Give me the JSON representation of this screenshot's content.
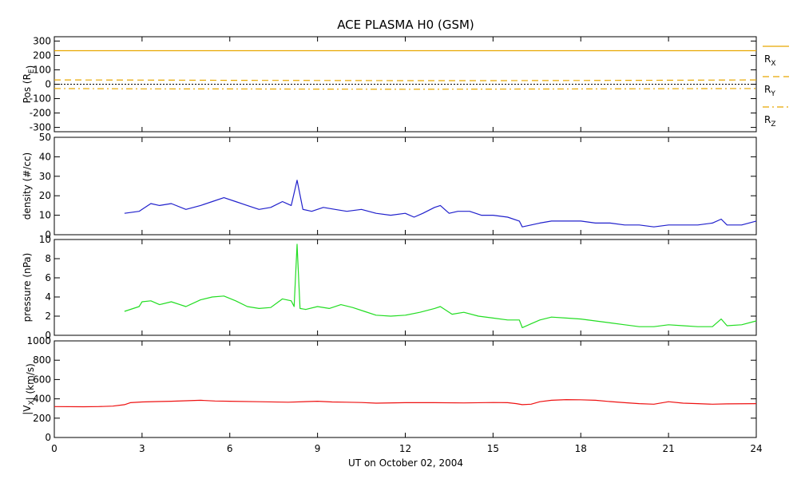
{
  "title": "ACE PLASMA H0 (GSM)",
  "xlabel": "UT on October 02, 2004",
  "chart_data": [
    {
      "type": "line",
      "ylabel": "Pos (R_E)",
      "ylabel_main": "Pos (R",
      "ylabel_sub": "E",
      "ylabel_tail": ")",
      "xlim": [
        0,
        24
      ],
      "ylim": [
        -330,
        330
      ],
      "yticks": [
        300,
        200,
        100,
        0,
        -100,
        -200,
        -300
      ],
      "xticks": [
        0,
        3,
        6,
        9,
        12,
        15,
        18,
        21,
        24
      ],
      "zero_line": true,
      "series": [
        {
          "name": "R_X",
          "label_main": "R",
          "label_sub": "X",
          "style": "solid",
          "color": "#e8a800",
          "x": [
            0,
            6,
            12,
            18,
            24
          ],
          "y": [
            233,
            233,
            233,
            233,
            233
          ]
        },
        {
          "name": "R_Y",
          "label_main": "R",
          "label_sub": "Y",
          "style": "dashed",
          "color": "#e8a800",
          "x": [
            0,
            3,
            6,
            9,
            12,
            15,
            18,
            21,
            24
          ],
          "y": [
            30,
            29,
            27,
            26,
            25,
            25,
            26,
            28,
            30
          ]
        },
        {
          "name": "R_Z",
          "label_main": "R",
          "label_sub": "Z",
          "style": "dashdot",
          "color": "#e8a800",
          "x": [
            0,
            3,
            6,
            9,
            12,
            15,
            18,
            21,
            24
          ],
          "y": [
            -30,
            -32,
            -33,
            -34,
            -35,
            -34,
            -33,
            -31,
            -30
          ]
        }
      ]
    },
    {
      "type": "line",
      "ylabel": "density (#/cc)",
      "xlim": [
        0,
        24
      ],
      "ylim": [
        0,
        50
      ],
      "yticks": [
        50,
        40,
        30,
        20,
        10,
        0
      ],
      "xticks": [
        0,
        3,
        6,
        9,
        12,
        15,
        18,
        21,
        24
      ],
      "series": [
        {
          "name": "density",
          "color": "#2020cc",
          "x": [
            2.4,
            2.9,
            3.0,
            3.3,
            3.6,
            4.0,
            4.5,
            5.0,
            5.4,
            5.8,
            6.2,
            6.6,
            7.0,
            7.4,
            7.8,
            8.1,
            8.3,
            8.5,
            8.8,
            9.2,
            9.6,
            10.0,
            10.5,
            11.0,
            11.5,
            12.0,
            12.3,
            12.6,
            13.0,
            13.2,
            13.5,
            13.8,
            14.2,
            14.6,
            15.0,
            15.5,
            15.9,
            16.0,
            16.3,
            16.6,
            17.0,
            17.5,
            18.0,
            18.5,
            19.0,
            19.5,
            20.0,
            20.5,
            21.0,
            21.5,
            22.0,
            22.5,
            22.8,
            23.0,
            23.5,
            24.0
          ],
          "y": [
            11,
            12,
            13,
            16,
            15,
            16,
            13,
            15,
            17,
            19,
            17,
            15,
            13,
            14,
            17,
            15,
            28,
            13,
            12,
            14,
            13,
            12,
            13,
            11,
            10,
            11,
            9,
            11,
            14,
            15,
            11,
            12,
            12,
            10,
            10,
            9,
            7,
            4,
            5,
            6,
            7,
            7,
            7,
            6,
            6,
            5,
            5,
            4,
            5,
            5,
            5,
            6,
            8,
            5,
            5,
            7
          ]
        }
      ]
    },
    {
      "type": "line",
      "ylabel": "pressure (nPa)",
      "xlim": [
        0,
        24
      ],
      "ylim": [
        0,
        10
      ],
      "yticks": [
        10,
        8,
        6,
        4,
        2,
        0
      ],
      "xticks": [
        0,
        3,
        6,
        9,
        12,
        15,
        18,
        21,
        24
      ],
      "series": [
        {
          "name": "pressure",
          "color": "#22dd22",
          "x": [
            2.4,
            2.9,
            3.0,
            3.3,
            3.6,
            4.0,
            4.5,
            5.0,
            5.4,
            5.8,
            6.2,
            6.6,
            7.0,
            7.4,
            7.8,
            8.1,
            8.2,
            8.3,
            8.4,
            8.6,
            9.0,
            9.4,
            9.8,
            10.2,
            10.6,
            11.0,
            11.5,
            12.0,
            12.5,
            13.0,
            13.2,
            13.6,
            14.0,
            14.5,
            15.0,
            15.5,
            15.9,
            16.0,
            16.3,
            16.6,
            17.0,
            17.5,
            18.0,
            18.5,
            19.0,
            19.5,
            20.0,
            20.5,
            21.0,
            21.5,
            22.0,
            22.5,
            22.8,
            23.0,
            23.5,
            24.0
          ],
          "y": [
            2.5,
            3.0,
            3.5,
            3.6,
            3.2,
            3.5,
            3.0,
            3.7,
            4.0,
            4.1,
            3.6,
            3.0,
            2.8,
            2.9,
            3.8,
            3.6,
            3.0,
            9.5,
            2.8,
            2.7,
            3.0,
            2.8,
            3.2,
            2.9,
            2.5,
            2.1,
            2.0,
            2.1,
            2.4,
            2.8,
            3.0,
            2.2,
            2.4,
            2.0,
            1.8,
            1.6,
            1.6,
            0.8,
            1.2,
            1.6,
            1.9,
            1.8,
            1.7,
            1.5,
            1.3,
            1.1,
            0.9,
            0.9,
            1.1,
            1.0,
            0.9,
            0.9,
            1.7,
            1.0,
            1.1,
            1.5
          ]
        }
      ]
    },
    {
      "type": "line",
      "ylabel": "|V_X| (km/s)",
      "ylabel_pre": "|V",
      "ylabel_sub": "X",
      "ylabel_tail": "| (km/s)",
      "xlim": [
        0,
        24
      ],
      "ylim": [
        0,
        1000
      ],
      "yticks": [
        1000,
        800,
        600,
        400,
        200,
        0
      ],
      "xticks": [
        0,
        3,
        6,
        9,
        12,
        15,
        18,
        21,
        24
      ],
      "series": [
        {
          "name": "Vx",
          "color": "#ee1111",
          "x": [
            0,
            1.0,
            1.5,
            2.0,
            2.4,
            2.6,
            3.0,
            3.5,
            4.0,
            4.5,
            5.0,
            5.5,
            6.0,
            7.0,
            8.0,
            9.0,
            9.5,
            10.0,
            10.5,
            11.0,
            12.0,
            13.0,
            14.0,
            15.0,
            15.5,
            15.8,
            16.0,
            16.3,
            16.6,
            17.0,
            17.5,
            18.0,
            18.5,
            19.0,
            19.5,
            20.0,
            20.5,
            21.0,
            21.5,
            22.0,
            22.5,
            23.0,
            24.0
          ],
          "y": [
            320,
            318,
            320,
            325,
            340,
            360,
            368,
            372,
            375,
            380,
            385,
            378,
            375,
            370,
            365,
            375,
            368,
            365,
            362,
            355,
            360,
            360,
            358,
            362,
            360,
            350,
            340,
            345,
            370,
            385,
            392,
            390,
            385,
            372,
            360,
            350,
            345,
            370,
            355,
            350,
            345,
            348,
            350
          ]
        }
      ]
    }
  ]
}
